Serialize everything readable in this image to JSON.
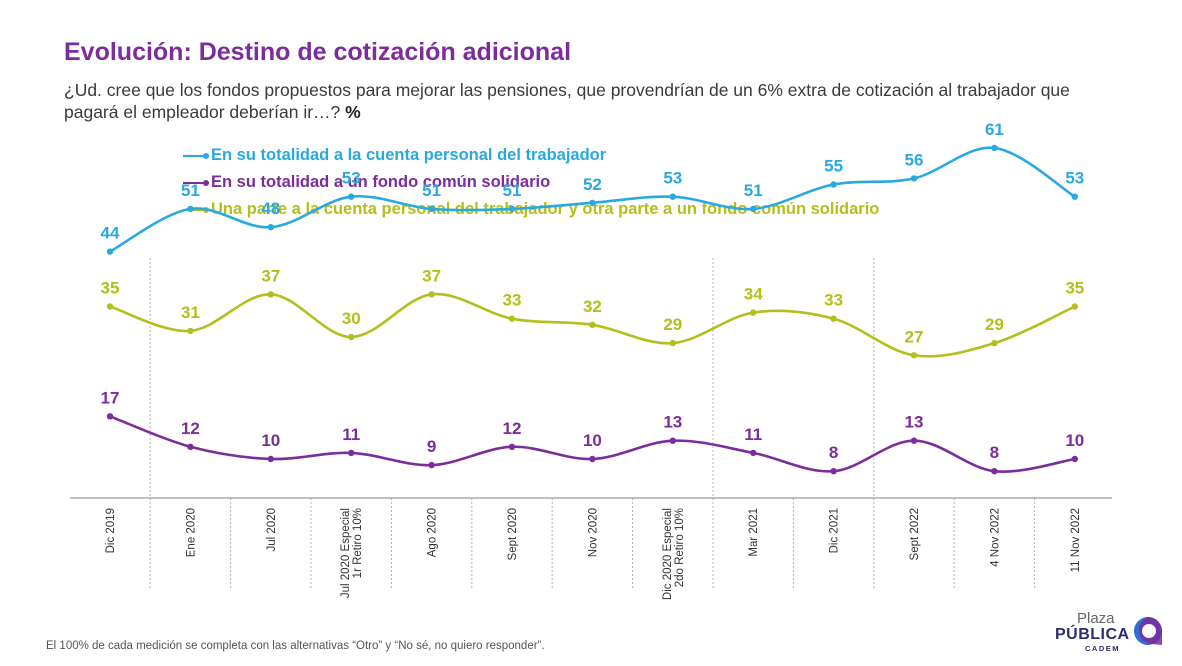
{
  "title": "Evolución: Destino de cotización adicional",
  "question": "¿Ud. cree que los fondos propuestos para mejorar las pensiones, que provendrían de un 6% extra de cotización al trabajador que pagará el empleador deberían ir…?",
  "question_unit": "%",
  "footnote": "El 100% de cada medición se completa con las alternativas “Otro” y “No sé, no quiero responder”.",
  "logo": {
    "line1": "Plaza",
    "line2": "PÚBLICA",
    "line3": "CADEM"
  },
  "colors": {
    "series1": "#29a9df",
    "series2": "#7b2d9b",
    "series3": "#b3bf1a",
    "axis": "#9a9a9a"
  },
  "chart_data": {
    "type": "line",
    "categories": [
      "Dic 2019",
      "Ene 2020",
      "Jul 2020",
      "Jul 2020 Especial\n1r Retiro 10%",
      "Ago 2020",
      "Sept 2020",
      "Nov 2020",
      "Dic 2020 Especial\n2do Retiro 10%",
      "Mar 2021",
      "Dic 2021",
      "Sept 2022",
      "4 Nov 2022",
      "11 Nov 2022"
    ],
    "series": [
      {
        "name": "En su totalidad a la cuenta personal del trabajador",
        "color": "#29a9df",
        "values": [
          44,
          51,
          48,
          53,
          51,
          51,
          52,
          53,
          51,
          55,
          56,
          61,
          53
        ]
      },
      {
        "name": "En su totalidad a un fondo común solidario",
        "color": "#7b2d9b",
        "values": [
          17,
          12,
          10,
          11,
          9,
          12,
          10,
          13,
          11,
          8,
          13,
          8,
          10
        ]
      },
      {
        "name": "Una parte a la cuenta personal del trabajador y otra parte a un fondo común solidario",
        "color": "#b3bf1a",
        "values": [
          35,
          31,
          37,
          30,
          37,
          33,
          32,
          29,
          34,
          33,
          27,
          29,
          35
        ]
      }
    ],
    "group_separators_after": [
      "Dic 2019",
      "Dic 2020 Especial\n2do Retiro 10%",
      "Dic 2021"
    ],
    "legend_position": "top-left",
    "data_labels": true,
    "grid": false
  }
}
